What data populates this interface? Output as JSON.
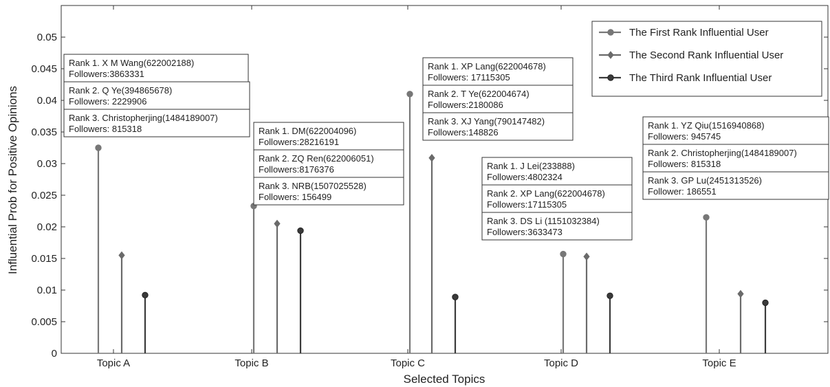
{
  "chart_data": {
    "type": "stem",
    "xlabel": "Selected Topics",
    "ylabel": "Influential Prob for Positive Opinions",
    "ylim": [
      0,
      0.055
    ],
    "yticks": [
      "0",
      "0.005",
      "0.01",
      "0.015",
      "0.02",
      "0.025",
      "0.03",
      "0.035",
      "0.04",
      "0.045",
      "0.05"
    ],
    "ytick_values": [
      0,
      0.005,
      0.01,
      0.015,
      0.02,
      0.025,
      0.03,
      0.035,
      0.04,
      0.045,
      0.05
    ],
    "categories": [
      "Topic A",
      "Topic B",
      "Topic C",
      "Topic D",
      "Topic E"
    ],
    "legend_position": "top-right",
    "series": [
      {
        "name": "The First Rank Influential User",
        "marker": "circle",
        "color": "#777777",
        "values": [
          0.0325,
          0.0233,
          0.041,
          0.0157,
          0.0215
        ]
      },
      {
        "name": "The Second Rank Influential User",
        "marker": "diamond",
        "color": "#6a6a6a",
        "values": [
          0.0155,
          0.0205,
          0.0309,
          0.0153,
          0.0094
        ]
      },
      {
        "name": "The Third Rank Influential User",
        "marker": "circle-dark",
        "color": "#3a3a3a",
        "values": [
          0.0092,
          0.0194,
          0.0089,
          0.0091,
          0.008
        ]
      }
    ],
    "annotations": [
      {
        "topic": "Topic A",
        "rank": 1,
        "line1": "Rank 1. X M Wang(622002188)",
        "line2": "Followers:3863331"
      },
      {
        "topic": "Topic A",
        "rank": 2,
        "line1": "Rank 2. Q Ye(394865678)",
        "line2": "Followers: 2229906"
      },
      {
        "topic": "Topic A",
        "rank": 3,
        "line1": "Rank 3. Christopherjing(1484189007)",
        "line2": "Followers: 815318"
      },
      {
        "topic": "Topic B",
        "rank": 1,
        "line1": "Rank 1. DM(622004096)",
        "line2": "Followers:28216191"
      },
      {
        "topic": "Topic B",
        "rank": 2,
        "line1": "Rank 2. ZQ Ren(622006051)",
        "line2": "Followers:8176376"
      },
      {
        "topic": "Topic B",
        "rank": 3,
        "line1": "Rank 3. NRB(1507025528)",
        "line2": "Followers: 156499"
      },
      {
        "topic": "Topic C",
        "rank": 1,
        "line1": "Rank 1. XP Lang(622004678)",
        "line2": "Followers: 17115305"
      },
      {
        "topic": "Topic C",
        "rank": 2,
        "line1": "Rank 2. T Ye(622004674)",
        "line2": "Followers:2180086"
      },
      {
        "topic": "Topic C",
        "rank": 3,
        "line1": "Rank 3. XJ Yang(790147482)",
        "line2": "Followers:148826"
      },
      {
        "topic": "Topic D",
        "rank": 1,
        "line1": "Rank 1. J Lei(233888)",
        "line2": "Followers:4802324"
      },
      {
        "topic": "Topic D",
        "rank": 2,
        "line1": "Rank 2. XP Lang(622004678)",
        "line2": "Followers:17115305"
      },
      {
        "topic": "Topic D",
        "rank": 3,
        "line1": "Rank 3. DS Li (1151032384)",
        "line2": "Followers:3633473"
      },
      {
        "topic": "Topic E",
        "rank": 1,
        "line1": "Rank 1. YZ Qiu(1516940868)",
        "line2": "Followers: 945745"
      },
      {
        "topic": "Topic E",
        "rank": 2,
        "line1": "Rank 2. Christopherjing(1484189007)",
        "line2": "Followers: 815318"
      },
      {
        "topic": "Topic E",
        "rank": 3,
        "line1": "Rank 3. GP Lu(2451313526)",
        "line2": "Follower: 186551"
      }
    ]
  }
}
